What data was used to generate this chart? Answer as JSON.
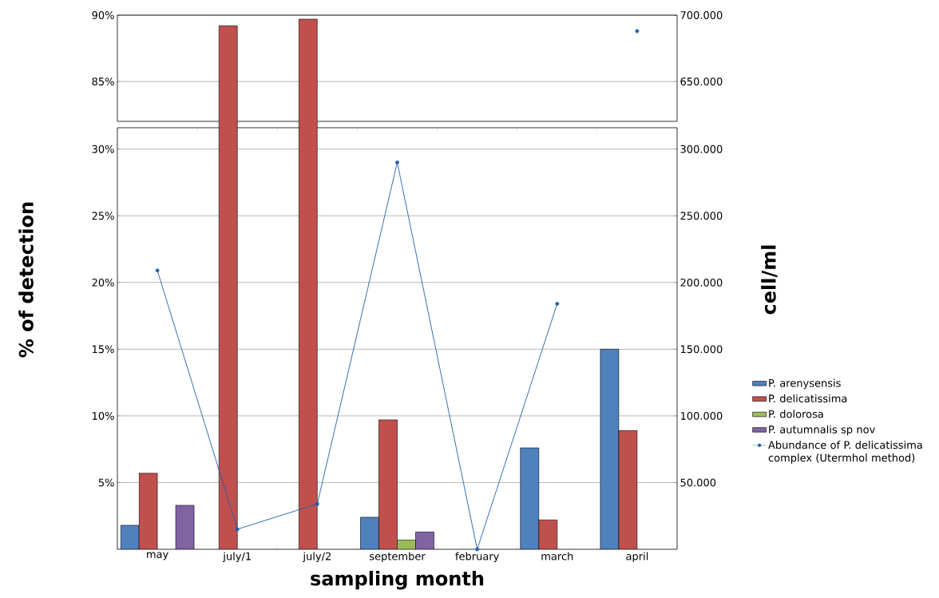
{
  "chart_data": [
    {
      "type": "bar",
      "categories": [
        null,
        null,
        null,
        null,
        null,
        null,
        null
      ],
      "series": [
        {
          "color": "#4f81bd",
          "values": [
            null,
            null,
            null,
            null,
            null,
            null,
            null
          ]
        },
        {
          "color": "#c0504d",
          "values": [
            null,
            89.2,
            89.7,
            null,
            null,
            null,
            null
          ]
        },
        {
          "color": "#9bbb59",
          "values": [
            null,
            null,
            null,
            null,
            null,
            null,
            null
          ]
        },
        {
          "color": "#8064a2",
          "values": [
            null,
            null,
            null,
            null,
            null,
            null,
            null
          ]
        },
        {
          "type": "line",
          "axis": "y2",
          "marker": "circle",
          "color": "#1f5fa8",
          "values": [
            null,
            null,
            null,
            null,
            null,
            null,
            688000
          ]
        }
      ],
      "ylim": [
        82,
        90
      ],
      "yticks": [
        {
          "value": 85,
          "label": "85%"
        },
        {
          "value": 90,
          "label": "90%"
        }
      ],
      "y2lim": [
        620000,
        700000
      ],
      "y2ticks": [
        {
          "value": 650000,
          "label": "650.000"
        },
        {
          "value": 700000,
          "label": "700.000"
        }
      ],
      "grid": "y",
      "tick_labels": "y"
    },
    {
      "type": "bar",
      "categories": [
        "may",
        "july/1",
        "july/2",
        "september",
        "february",
        "march",
        "april"
      ],
      "series": [
        {
          "name": "P. arenysensis",
          "color": "#4f81bd",
          "values": [
            1.8,
            null,
            null,
            2.4,
            null,
            7.6,
            15
          ]
        },
        {
          "name": "P. delicatissima",
          "color": "#c0504d",
          "values": [
            5.7,
            null,
            null,
            9.7,
            null,
            2.2,
            8.9
          ]
        },
        {
          "name": "P. dolorosa",
          "color": "#9bbb59",
          "values": [
            null,
            null,
            null,
            0.7,
            null,
            null,
            null
          ]
        },
        {
          "name": "P. autumnalis sp nov",
          "color": "#8064a2",
          "values": [
            3.3,
            null,
            null,
            1.3,
            null,
            null,
            null
          ]
        },
        {
          "name": "Abundance of P. delicatissima complex (Utermhol method)",
          "type": "line",
          "axis": "y2",
          "marker": "circle",
          "color": "#1f5fa8",
          "values": [
            209000,
            15000,
            34000,
            290000,
            0,
            184000,
            null
          ]
        }
      ],
      "xlabel": "sampling month",
      "ylabel": "% of detection",
      "y2label": "cell/ml",
      "ylim": [
        0,
        31.6
      ],
      "yticks": [
        {
          "value": 5,
          "label": "5%"
        },
        {
          "value": 10,
          "label": "10%"
        },
        {
          "value": 15,
          "label": "15%"
        },
        {
          "value": 20,
          "label": "20%"
        },
        {
          "value": 25,
          "label": "25%"
        },
        {
          "value": 30,
          "label": "30%"
        }
      ],
      "y2lim": [
        0,
        316000
      ],
      "y2ticks": [
        {
          "value": 50000,
          "label": "50.000"
        },
        {
          "value": 100000,
          "label": "100.000"
        },
        {
          "value": 150000,
          "label": "150.000"
        },
        {
          "value": 200000,
          "label": "200.000"
        },
        {
          "value": 250000,
          "label": "250.000"
        },
        {
          "value": 300000,
          "label": "300.000"
        }
      ],
      "grid": "y",
      "legend": "right"
    }
  ]
}
